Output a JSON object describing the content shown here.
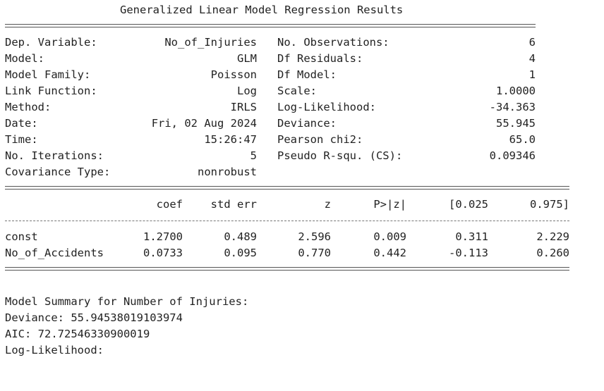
{
  "title": "Generalized Linear Model Regression Results",
  "info_left": [
    {
      "label": "Dep. Variable:",
      "value": "No_of_Injuries"
    },
    {
      "label": "Model:",
      "value": "GLM"
    },
    {
      "label": "Model Family:",
      "value": "Poisson"
    },
    {
      "label": "Link Function:",
      "value": "Log"
    },
    {
      "label": "Method:",
      "value": "IRLS"
    },
    {
      "label": "Date:",
      "value": "Fri, 02 Aug 2024"
    },
    {
      "label": "Time:",
      "value": "15:26:47"
    },
    {
      "label": "No. Iterations:",
      "value": "5"
    },
    {
      "label": "Covariance Type:",
      "value": "nonrobust"
    }
  ],
  "info_right": [
    {
      "label": "No. Observations:",
      "value": "6"
    },
    {
      "label": "Df Residuals:",
      "value": "4"
    },
    {
      "label": "Df Model:",
      "value": "1"
    },
    {
      "label": "Scale:",
      "value": "1.0000"
    },
    {
      "label": "Log-Likelihood:",
      "value": "-34.363"
    },
    {
      "label": "Deviance:",
      "value": "55.945"
    },
    {
      "label": "Pearson chi2:",
      "value": "65.0"
    },
    {
      "label": "Pseudo R-squ. (CS):",
      "value": "0.09346"
    }
  ],
  "coef_headers": [
    "coef",
    "std err",
    "z",
    "P>|z|",
    "[0.025",
    "0.975]"
  ],
  "params": [
    {
      "name": "const",
      "coef": "1.2700",
      "std_err": "0.489",
      "z": "2.596",
      "p": "0.009",
      "lo": "0.311",
      "hi": "2.229"
    },
    {
      "name": "No_of_Accidents",
      "coef": "0.0733",
      "std_err": "0.095",
      "z": "0.770",
      "p": "0.442",
      "lo": "-0.113",
      "hi": "0.260"
    }
  ],
  "summary": {
    "heading": "Model Summary for Number of Injuries:",
    "deviance": "Deviance: 55.94538019103974",
    "aic": "AIC: 72.72546330900019",
    "partial": "Log-Likelihood:"
  }
}
